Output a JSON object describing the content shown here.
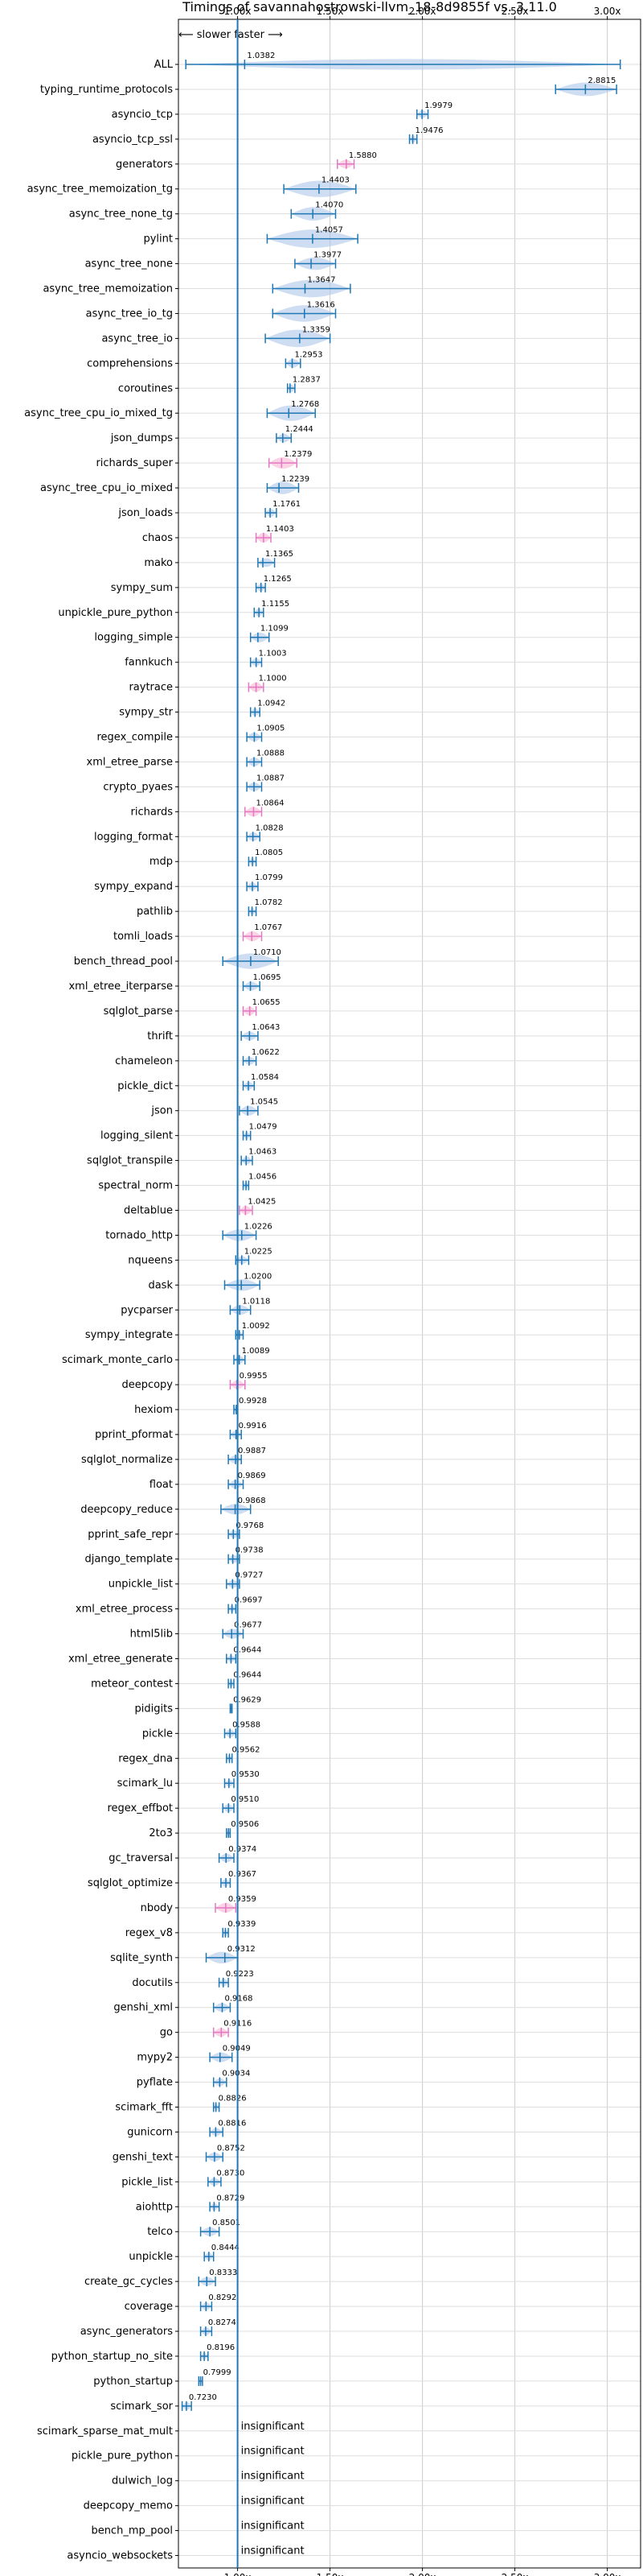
{
  "chart_data": {
    "type": "violin",
    "title": "Timings of savannahostrowski-llvm_18-8d9855f vs. 3.11.0",
    "direction_note": "⟵ slower   faster ⟶",
    "x_ticks": [
      "1.00x",
      "1.50x",
      "2.00x",
      "2.50x",
      "3.00x"
    ],
    "x_tick_values": [
      1.0,
      1.5,
      2.0,
      2.5,
      3.0
    ],
    "xlim": [
      0.68,
      3.18
    ],
    "reference_line": 1.0,
    "grid": true,
    "colors": {
      "normal": "#1f77b4",
      "fill": "#aec7e8",
      "highlight": "#e377c2"
    },
    "insignificant_label": "insignificant",
    "benchmarks": [
      {
        "name": "ALL",
        "value": 1.0382,
        "lo": 0.72,
        "hi": 3.07,
        "spread": 0.06
      },
      {
        "name": "typing_runtime_protocols",
        "value": 2.8815,
        "lo": 2.72,
        "hi": 3.05,
        "spread": 0.09
      },
      {
        "name": "asyncio_tcp",
        "value": 1.9979,
        "lo": 1.97,
        "hi": 2.03,
        "spread": 0.03
      },
      {
        "name": "asyncio_tcp_ssl",
        "value": 1.9476,
        "lo": 1.93,
        "hi": 1.97,
        "spread": 0.02
      },
      {
        "name": "generators",
        "value": 1.588,
        "lo": 1.54,
        "hi": 1.63,
        "spread": 0.04,
        "hl": true
      },
      {
        "name": "async_tree_memoization_tg",
        "value": 1.4403,
        "lo": 1.25,
        "hi": 1.64,
        "spread": 0.12
      },
      {
        "name": "async_tree_none_tg",
        "value": 1.407,
        "lo": 1.29,
        "hi": 1.53,
        "spread": 0.09
      },
      {
        "name": "pylint",
        "value": 1.4057,
        "lo": 1.16,
        "hi": 1.65,
        "spread": 0.14
      },
      {
        "name": "async_tree_none",
        "value": 1.3977,
        "lo": 1.31,
        "hi": 1.53,
        "spread": 0.08
      },
      {
        "name": "async_tree_memoization",
        "value": 1.3647,
        "lo": 1.19,
        "hi": 1.61,
        "spread": 0.13
      },
      {
        "name": "async_tree_io_tg",
        "value": 1.3616,
        "lo": 1.19,
        "hi": 1.53,
        "spread": 0.12
      },
      {
        "name": "async_tree_io",
        "value": 1.3359,
        "lo": 1.15,
        "hi": 1.5,
        "spread": 0.13
      },
      {
        "name": "comprehensions",
        "value": 1.2953,
        "lo": 1.26,
        "hi": 1.34,
        "spread": 0.04
      },
      {
        "name": "coroutines",
        "value": 1.2837,
        "lo": 1.27,
        "hi": 1.31,
        "spread": 0.03
      },
      {
        "name": "async_tree_cpu_io_mixed_tg",
        "value": 1.2768,
        "lo": 1.16,
        "hi": 1.42,
        "spread": 0.11
      },
      {
        "name": "json_dumps",
        "value": 1.2444,
        "lo": 1.21,
        "hi": 1.29,
        "spread": 0.04
      },
      {
        "name": "richards_super",
        "value": 1.2379,
        "lo": 1.17,
        "hi": 1.32,
        "spread": 0.07,
        "hl": true
      },
      {
        "name": "async_tree_cpu_io_mixed",
        "value": 1.2239,
        "lo": 1.16,
        "hi": 1.33,
        "spread": 0.08
      },
      {
        "name": "json_loads",
        "value": 1.1761,
        "lo": 1.15,
        "hi": 1.21,
        "spread": 0.03
      },
      {
        "name": "chaos",
        "value": 1.1403,
        "lo": 1.1,
        "hi": 1.18,
        "spread": 0.05,
        "hl": true
      },
      {
        "name": "mako",
        "value": 1.1365,
        "lo": 1.11,
        "hi": 1.2,
        "spread": 0.04
      },
      {
        "name": "sympy_sum",
        "value": 1.1265,
        "lo": 1.1,
        "hi": 1.15,
        "spread": 0.03
      },
      {
        "name": "unpickle_pure_python",
        "value": 1.1155,
        "lo": 1.09,
        "hi": 1.14,
        "spread": 0.03
      },
      {
        "name": "logging_simple",
        "value": 1.1099,
        "lo": 1.07,
        "hi": 1.17,
        "spread": 0.05
      },
      {
        "name": "fannkuch",
        "value": 1.1003,
        "lo": 1.07,
        "hi": 1.13,
        "spread": 0.03
      },
      {
        "name": "raytrace",
        "value": 1.1,
        "lo": 1.06,
        "hi": 1.14,
        "spread": 0.05,
        "hl": true
      },
      {
        "name": "sympy_str",
        "value": 1.0942,
        "lo": 1.07,
        "hi": 1.12,
        "spread": 0.03
      },
      {
        "name": "regex_compile",
        "value": 1.0905,
        "lo": 1.05,
        "hi": 1.13,
        "spread": 0.04
      },
      {
        "name": "xml_etree_parse",
        "value": 1.0888,
        "lo": 1.05,
        "hi": 1.13,
        "spread": 0.04
      },
      {
        "name": "crypto_pyaes",
        "value": 1.0887,
        "lo": 1.05,
        "hi": 1.13,
        "spread": 0.04
      },
      {
        "name": "richards",
        "value": 1.0864,
        "lo": 1.04,
        "hi": 1.13,
        "spread": 0.05,
        "hl": true
      },
      {
        "name": "logging_format",
        "value": 1.0828,
        "lo": 1.05,
        "hi": 1.12,
        "spread": 0.04
      },
      {
        "name": "mdp",
        "value": 1.0805,
        "lo": 1.06,
        "hi": 1.1,
        "spread": 0.02
      },
      {
        "name": "sympy_expand",
        "value": 1.0799,
        "lo": 1.05,
        "hi": 1.11,
        "spread": 0.03
      },
      {
        "name": "pathlib",
        "value": 1.0782,
        "lo": 1.06,
        "hi": 1.1,
        "spread": 0.02
      },
      {
        "name": "tomli_loads",
        "value": 1.0767,
        "lo": 1.03,
        "hi": 1.13,
        "spread": 0.05,
        "hl": true
      },
      {
        "name": "bench_thread_pool",
        "value": 1.071,
        "lo": 0.92,
        "hi": 1.22,
        "spread": 0.11
      },
      {
        "name": "xml_etree_iterparse",
        "value": 1.0695,
        "lo": 1.03,
        "hi": 1.12,
        "spread": 0.04
      },
      {
        "name": "sqlglot_parse",
        "value": 1.0655,
        "lo": 1.03,
        "hi": 1.1,
        "spread": 0.04,
        "hl": true
      },
      {
        "name": "thrift",
        "value": 1.0643,
        "lo": 1.02,
        "hi": 1.11,
        "spread": 0.04
      },
      {
        "name": "chameleon",
        "value": 1.0622,
        "lo": 1.03,
        "hi": 1.1,
        "spread": 0.03
      },
      {
        "name": "pickle_dict",
        "value": 1.0584,
        "lo": 1.03,
        "hi": 1.09,
        "spread": 0.03
      },
      {
        "name": "json",
        "value": 1.0545,
        "lo": 1.01,
        "hi": 1.11,
        "spread": 0.05
      },
      {
        "name": "logging_silent",
        "value": 1.0479,
        "lo": 1.03,
        "hi": 1.07,
        "spread": 0.02
      },
      {
        "name": "sqlglot_transpile",
        "value": 1.0463,
        "lo": 1.02,
        "hi": 1.08,
        "spread": 0.03
      },
      {
        "name": "spectral_norm",
        "value": 1.0456,
        "lo": 1.03,
        "hi": 1.06,
        "spread": 0.02
      },
      {
        "name": "deltablue",
        "value": 1.0425,
        "lo": 1.01,
        "hi": 1.08,
        "spread": 0.04,
        "hl": true
      },
      {
        "name": "tornado_http",
        "value": 1.0226,
        "lo": 0.92,
        "hi": 1.1,
        "spread": 0.07
      },
      {
        "name": "nqueens",
        "value": 1.0225,
        "lo": 0.99,
        "hi": 1.06,
        "spread": 0.03
      },
      {
        "name": "dask",
        "value": 1.02,
        "lo": 0.93,
        "hi": 1.12,
        "spread": 0.07
      },
      {
        "name": "pycparser",
        "value": 1.0118,
        "lo": 0.96,
        "hi": 1.07,
        "spread": 0.05
      },
      {
        "name": "sympy_integrate",
        "value": 1.0092,
        "lo": 0.99,
        "hi": 1.03,
        "spread": 0.02
      },
      {
        "name": "scimark_monte_carlo",
        "value": 1.0089,
        "lo": 0.98,
        "hi": 1.04,
        "spread": 0.03
      },
      {
        "name": "deepcopy",
        "value": 0.9955,
        "lo": 0.96,
        "hi": 1.04,
        "spread": 0.04,
        "hl": true
      },
      {
        "name": "hexiom",
        "value": 0.9928,
        "lo": 0.98,
        "hi": 1.0,
        "spread": 0.02
      },
      {
        "name": "pprint_pformat",
        "value": 0.9916,
        "lo": 0.96,
        "hi": 1.02,
        "spread": 0.03
      },
      {
        "name": "sqlglot_normalize",
        "value": 0.9887,
        "lo": 0.95,
        "hi": 1.02,
        "spread": 0.03
      },
      {
        "name": "float",
        "value": 0.9869,
        "lo": 0.95,
        "hi": 1.03,
        "spread": 0.04
      },
      {
        "name": "deepcopy_reduce",
        "value": 0.9868,
        "lo": 0.91,
        "hi": 1.07,
        "spread": 0.06
      },
      {
        "name": "pprint_safe_repr",
        "value": 0.9768,
        "lo": 0.95,
        "hi": 1.01,
        "spread": 0.03
      },
      {
        "name": "django_template",
        "value": 0.9738,
        "lo": 0.95,
        "hi": 1.01,
        "spread": 0.03
      },
      {
        "name": "unpickle_list",
        "value": 0.9727,
        "lo": 0.94,
        "hi": 1.01,
        "spread": 0.03
      },
      {
        "name": "xml_etree_process",
        "value": 0.9697,
        "lo": 0.95,
        "hi": 0.99,
        "spread": 0.02
      },
      {
        "name": "html5lib",
        "value": 0.9677,
        "lo": 0.92,
        "hi": 1.03,
        "spread": 0.05
      },
      {
        "name": "xml_etree_generate",
        "value": 0.9644,
        "lo": 0.94,
        "hi": 0.99,
        "spread": 0.02
      },
      {
        "name": "meteor_contest",
        "value": 0.9644,
        "lo": 0.95,
        "hi": 0.98,
        "spread": 0.02
      },
      {
        "name": "pidigits",
        "value": 0.9629,
        "lo": 0.96,
        "hi": 0.97,
        "spread": 0.01
      },
      {
        "name": "pickle",
        "value": 0.9588,
        "lo": 0.93,
        "hi": 0.99,
        "spread": 0.03
      },
      {
        "name": "regex_dna",
        "value": 0.9562,
        "lo": 0.94,
        "hi": 0.97,
        "spread": 0.02
      },
      {
        "name": "scimark_lu",
        "value": 0.953,
        "lo": 0.93,
        "hi": 0.98,
        "spread": 0.02
      },
      {
        "name": "regex_effbot",
        "value": 0.951,
        "lo": 0.92,
        "hi": 0.98,
        "spread": 0.03
      },
      {
        "name": "2to3",
        "value": 0.9506,
        "lo": 0.94,
        "hi": 0.96,
        "spread": 0.02
      },
      {
        "name": "gc_traversal",
        "value": 0.9374,
        "lo": 0.9,
        "hi": 0.98,
        "spread": 0.04
      },
      {
        "name": "sqlglot_optimize",
        "value": 0.9367,
        "lo": 0.91,
        "hi": 0.96,
        "spread": 0.03
      },
      {
        "name": "nbody",
        "value": 0.9359,
        "lo": 0.88,
        "hi": 0.99,
        "spread": 0.05,
        "hl": true
      },
      {
        "name": "regex_v8",
        "value": 0.9339,
        "lo": 0.92,
        "hi": 0.95,
        "spread": 0.02
      },
      {
        "name": "sqlite_synth",
        "value": 0.9312,
        "lo": 0.83,
        "hi": 1.0,
        "spread": 0.07
      },
      {
        "name": "docutils",
        "value": 0.9223,
        "lo": 0.9,
        "hi": 0.95,
        "spread": 0.03
      },
      {
        "name": "genshi_xml",
        "value": 0.9168,
        "lo": 0.87,
        "hi": 0.96,
        "spread": 0.04
      },
      {
        "name": "go",
        "value": 0.9116,
        "lo": 0.87,
        "hi": 0.95,
        "spread": 0.04,
        "hl": true
      },
      {
        "name": "mypy2",
        "value": 0.9049,
        "lo": 0.85,
        "hi": 0.97,
        "spread": 0.05
      },
      {
        "name": "pyflate",
        "value": 0.9034,
        "lo": 0.87,
        "hi": 0.94,
        "spread": 0.03
      },
      {
        "name": "scimark_fft",
        "value": 0.8826,
        "lo": 0.87,
        "hi": 0.9,
        "spread": 0.02
      },
      {
        "name": "gunicorn",
        "value": 0.8816,
        "lo": 0.85,
        "hi": 0.92,
        "spread": 0.03
      },
      {
        "name": "genshi_text",
        "value": 0.8752,
        "lo": 0.83,
        "hi": 0.92,
        "spread": 0.04
      },
      {
        "name": "pickle_list",
        "value": 0.873,
        "lo": 0.84,
        "hi": 0.91,
        "spread": 0.03
      },
      {
        "name": "aiohttp",
        "value": 0.8729,
        "lo": 0.85,
        "hi": 0.9,
        "spread": 0.02
      },
      {
        "name": "telco",
        "value": 0.8501,
        "lo": 0.8,
        "hi": 0.9,
        "spread": 0.04
      },
      {
        "name": "unpickle",
        "value": 0.8444,
        "lo": 0.82,
        "hi": 0.87,
        "spread": 0.03
      },
      {
        "name": "create_gc_cycles",
        "value": 0.8333,
        "lo": 0.79,
        "hi": 0.88,
        "spread": 0.04
      },
      {
        "name": "coverage",
        "value": 0.8292,
        "lo": 0.8,
        "hi": 0.86,
        "spread": 0.03
      },
      {
        "name": "async_generators",
        "value": 0.8274,
        "lo": 0.8,
        "hi": 0.86,
        "spread": 0.03
      },
      {
        "name": "python_startup_no_site",
        "value": 0.8196,
        "lo": 0.8,
        "hi": 0.84,
        "spread": 0.02
      },
      {
        "name": "python_startup",
        "value": 0.7999,
        "lo": 0.79,
        "hi": 0.81,
        "spread": 0.02
      },
      {
        "name": "scimark_sor",
        "value": 0.723,
        "lo": 0.7,
        "hi": 0.75,
        "spread": 0.03
      },
      {
        "name": "scimark_sparse_mat_mult",
        "insignificant": true
      },
      {
        "name": "pickle_pure_python",
        "insignificant": true
      },
      {
        "name": "dulwich_log",
        "insignificant": true
      },
      {
        "name": "deepcopy_memo",
        "insignificant": true
      },
      {
        "name": "bench_mp_pool",
        "insignificant": true
      },
      {
        "name": "asyncio_websockets",
        "insignificant": true
      }
    ]
  }
}
